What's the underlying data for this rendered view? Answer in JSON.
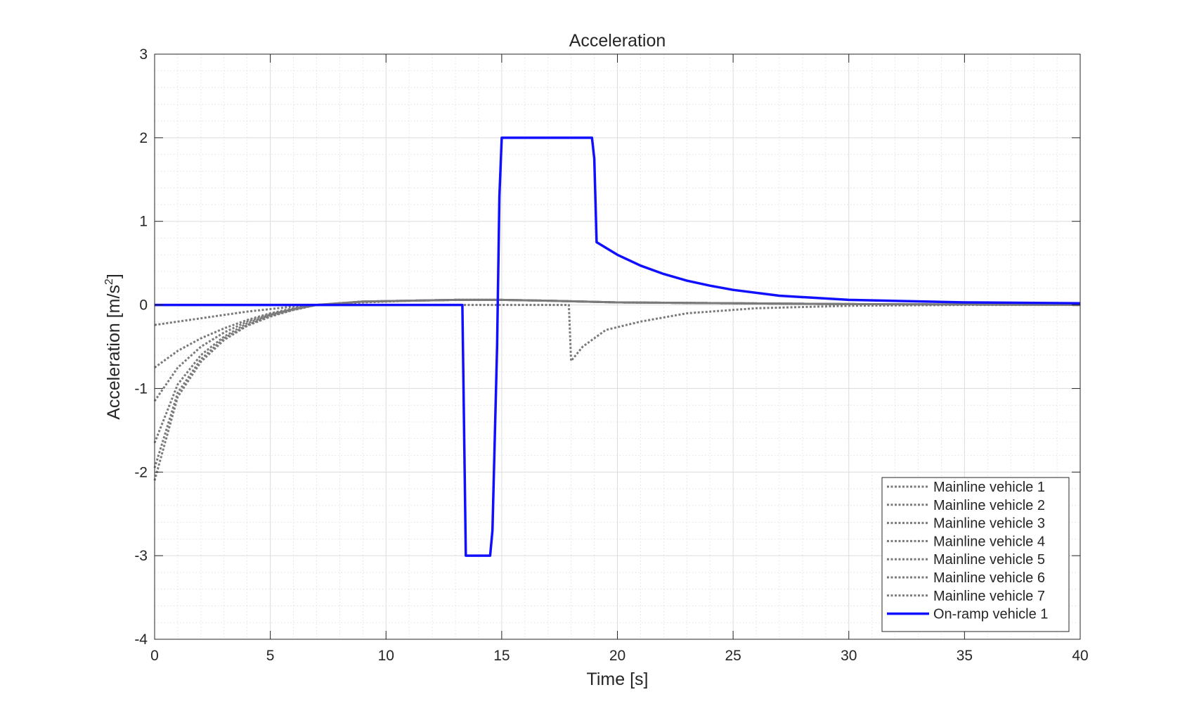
{
  "chart_data": {
    "type": "line",
    "title": "Acceleration",
    "xlabel": "Time [s]",
    "ylabel_main": "Acceleration  [m/s",
    "ylabel_sup": "2",
    "ylabel_end": "]",
    "xlim": [
      0,
      40
    ],
    "ylim": [
      -4,
      3
    ],
    "xticks": [
      0,
      5,
      10,
      15,
      20,
      25,
      30,
      35,
      40
    ],
    "yticks": [
      -4,
      -3,
      -2,
      -1,
      0,
      1,
      2,
      3
    ],
    "grid": true,
    "minor_grid": true,
    "legend_position": "bottom-right",
    "colors": {
      "mainline": "#7a7a7a",
      "onramp": "#1010ff",
      "axis": "#262626",
      "grid": "#dcdcdc"
    },
    "series": [
      {
        "name": "Mainline vehicle 1",
        "style": "dotted",
        "x": [
          0,
          1,
          2,
          3,
          4,
          5,
          6,
          7,
          9,
          11,
          13,
          15,
          17,
          20,
          25,
          30,
          35,
          40
        ],
        "y": [
          -0.24,
          -0.2,
          -0.16,
          -0.12,
          -0.08,
          -0.05,
          -0.02,
          0,
          0.03,
          0.05,
          0.06,
          0.06,
          0.05,
          0.03,
          0.02,
          0.01,
          0.005,
          0
        ]
      },
      {
        "name": "Mainline vehicle 2",
        "style": "dotted",
        "x": [
          0,
          1,
          2,
          3,
          4,
          5,
          6,
          7,
          9,
          11,
          13,
          15,
          17,
          20,
          25,
          30,
          35,
          40
        ],
        "y": [
          -0.75,
          -0.55,
          -0.4,
          -0.28,
          -0.18,
          -0.1,
          -0.04,
          0,
          0.04,
          0.05,
          0.06,
          0.06,
          0.05,
          0.03,
          0.02,
          0.01,
          0.005,
          0
        ]
      },
      {
        "name": "Mainline vehicle 3",
        "style": "dotted",
        "x": [
          0,
          1,
          2,
          3,
          4,
          5,
          6,
          7,
          9,
          11,
          13,
          15,
          17,
          20,
          25,
          30,
          35,
          40
        ],
        "y": [
          -1.15,
          -0.75,
          -0.5,
          -0.33,
          -0.2,
          -0.11,
          -0.05,
          0,
          0.04,
          0.05,
          0.06,
          0.06,
          0.05,
          0.03,
          0.02,
          0.01,
          0.005,
          0
        ]
      },
      {
        "name": "Mainline vehicle 4",
        "style": "dotted",
        "x": [
          0,
          1,
          2,
          3,
          4,
          5,
          6,
          7,
          9,
          11,
          13,
          15,
          17,
          20,
          25,
          30,
          35,
          40
        ],
        "y": [
          -1.65,
          -0.95,
          -0.6,
          -0.38,
          -0.22,
          -0.12,
          -0.05,
          0,
          0.04,
          0.05,
          0.06,
          0.06,
          0.05,
          0.03,
          0.02,
          0.01,
          0.005,
          0
        ]
      },
      {
        "name": "Mainline vehicle 5",
        "style": "dotted",
        "x": [
          0,
          1,
          2,
          3,
          4,
          5,
          6,
          7,
          9,
          11,
          13,
          15,
          17,
          20,
          25,
          30,
          35,
          40
        ],
        "y": [
          -1.95,
          -1.05,
          -0.65,
          -0.4,
          -0.24,
          -0.13,
          -0.06,
          0,
          0.04,
          0.05,
          0.06,
          0.06,
          0.05,
          0.03,
          0.02,
          0.01,
          0.005,
          0
        ]
      },
      {
        "name": "Mainline vehicle 6",
        "style": "dotted",
        "x": [
          0,
          1,
          2,
          3,
          4,
          5,
          6,
          7,
          9,
          11,
          13,
          15,
          17,
          20,
          25,
          30,
          35,
          40
        ],
        "y": [
          -2.1,
          -1.1,
          -0.68,
          -0.42,
          -0.25,
          -0.14,
          -0.06,
          0,
          0.04,
          0.05,
          0.06,
          0.06,
          0.05,
          0.03,
          0.02,
          0.01,
          0.005,
          0
        ]
      },
      {
        "name": "Mainline vehicle 7",
        "style": "dotted",
        "x": [
          0,
          2,
          4,
          6,
          8,
          10,
          12,
          14,
          16,
          17.9,
          18.0,
          18.5,
          19.5,
          21,
          23,
          26,
          30,
          35,
          40
        ],
        "y": [
          0,
          0,
          0,
          0,
          0,
          0,
          0,
          0,
          0,
          0,
          -0.67,
          -0.5,
          -0.3,
          -0.2,
          -0.1,
          -0.04,
          -0.01,
          0,
          0
        ]
      },
      {
        "name": "On-ramp vehicle 1",
        "style": "solid",
        "x": [
          0,
          13.3,
          13.45,
          14.5,
          14.6,
          14.8,
          14.9,
          15.0,
          15.1,
          18.9,
          19.0,
          19.1,
          20,
          21,
          22,
          23,
          24,
          25,
          27,
          30,
          35,
          40
        ],
        "y": [
          0,
          0,
          -3,
          -3,
          -2.7,
          -0.5,
          1.3,
          2,
          2,
          2,
          1.75,
          0.75,
          0.6,
          0.47,
          0.37,
          0.29,
          0.23,
          0.18,
          0.11,
          0.06,
          0.03,
          0.02
        ]
      }
    ]
  }
}
